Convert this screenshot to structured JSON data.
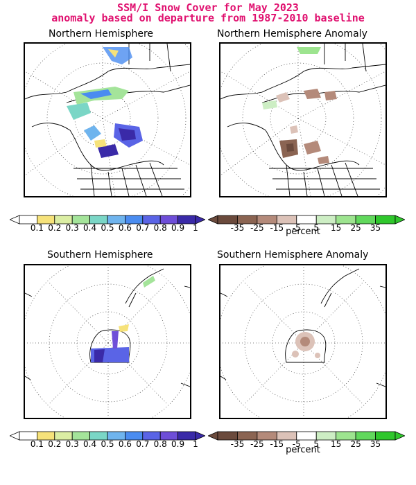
{
  "header": {
    "title_line1": "SSM/I Snow Cover for May 2023",
    "title_line2": "anomaly based on departure from 1987-2010 baseline"
  },
  "panels": {
    "nh_cover": {
      "title": "Northern Hemisphere"
    },
    "nh_anomaly": {
      "title": "Northern Hemisphere Anomaly"
    },
    "sh_cover": {
      "title": "Southern Hemisphere"
    },
    "sh_anomaly": {
      "title": "Southern Hemisphere Anomaly"
    }
  },
  "colorbars": {
    "cover": {
      "ticks": [
        "0.1",
        "0.2",
        "0.3",
        "0.4",
        "0.5",
        "0.6",
        "0.7",
        "0.8",
        "0.9",
        "1"
      ],
      "colors": [
        "#ffffff",
        "#f6e27a",
        "#dbeea3",
        "#a4e49a",
        "#7ad6c6",
        "#6fb4ee",
        "#4a8cf0",
        "#5a64e6",
        "#6e4ed8",
        "#3a2aa8"
      ]
    },
    "anomaly": {
      "ticks": [
        "-35",
        "-25",
        "-15",
        "-5",
        "5",
        "15",
        "25",
        "35"
      ],
      "colors": [
        "#6b4a3c",
        "#8b6452",
        "#b48a7a",
        "#dcc2b8",
        "#ffffff",
        "#cdeec4",
        "#9de48f",
        "#61d85c",
        "#2fc72c"
      ],
      "unit": "percent"
    }
  }
}
